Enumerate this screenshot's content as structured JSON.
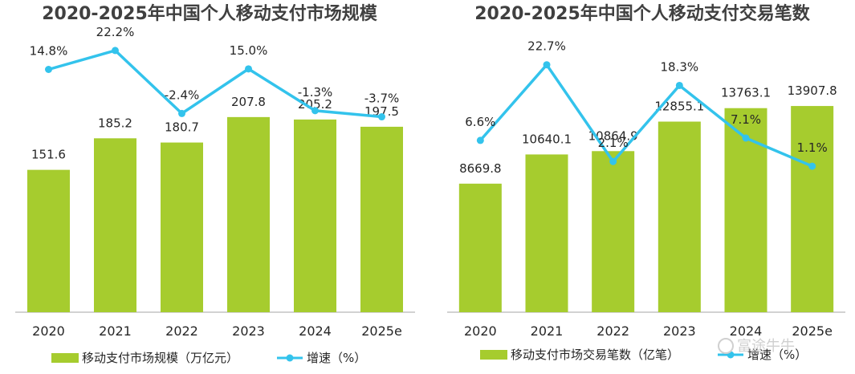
{
  "chart_data": [
    {
      "type": "bar",
      "title": "2020-2025年中国个人移动支付市场规模",
      "categories": [
        "2020",
        "2021",
        "2022",
        "2023",
        "2024",
        "2025e"
      ],
      "series": [
        {
          "name": "移动支付市场规模（万亿元）",
          "type": "bar",
          "values": [
            151.6,
            185.2,
            180.7,
            207.8,
            205.2,
            197.5
          ]
        },
        {
          "name": "增速（%）",
          "type": "line",
          "values": [
            14.8,
            22.2,
            -2.4,
            15.0,
            -1.3,
            -3.7
          ],
          "labels": [
            "14.8%",
            "22.2%",
            "-2.4%",
            "15.0%",
            "-1.3%",
            "-3.7%"
          ]
        }
      ],
      "bar_labels": [
        "151.6",
        "185.2",
        "180.7",
        "207.8",
        "205.2",
        "197.5"
      ],
      "bar_ylim": [
        0,
        300
      ],
      "line_ylim": [
        -80,
        30
      ],
      "grid": false,
      "legend": "bottom"
    },
    {
      "type": "bar",
      "title": "2020-2025年中国个人移动支付交易笔数",
      "categories": [
        "2020",
        "2021",
        "2022",
        "2023",
        "2024",
        "2025e"
      ],
      "series": [
        {
          "name": "移动支付市场交易笔数（亿笔）",
          "type": "bar",
          "values": [
            8669.8,
            10640.1,
            10864.9,
            12855.1,
            13763.1,
            13907.8
          ]
        },
        {
          "name": "增速（%）",
          "type": "line",
          "values": [
            6.6,
            22.7,
            2.1,
            18.3,
            7.1,
            1.1
          ],
          "labels": [
            "6.6%",
            "22.7%",
            "2.1%",
            "18.3%",
            "7.1%",
            "1.1%"
          ]
        }
      ],
      "bar_labels": [
        "8669.8",
        "10640.1",
        "10864.9",
        "12855.1",
        "13763.1",
        "13907.8"
      ],
      "bar_ylim": [
        0,
        19000
      ],
      "line_ylim": [
        -30,
        30
      ],
      "grid": false,
      "legend": "bottom"
    }
  ],
  "colors": {
    "bar": "#a6cc2e",
    "line": "#33c3ec",
    "axis": "#a6a6a6",
    "text": "#262626"
  },
  "watermark": "富途牛牛"
}
